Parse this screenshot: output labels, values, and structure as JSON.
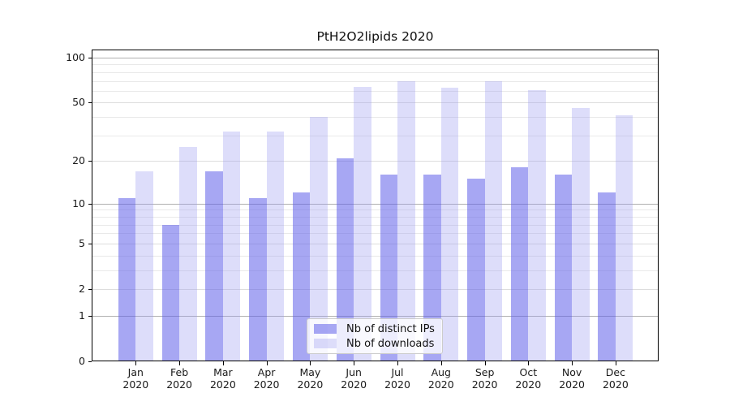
{
  "title": "PtH2O2lipids 2020",
  "legend": {
    "items": [
      {
        "label": "Nb of distinct IPs",
        "color": "rgba(94,94,234,0.55)"
      },
      {
        "label": "Nb of downloads",
        "color": "rgba(157,157,240,0.35)"
      }
    ]
  },
  "chart_data": {
    "type": "bar",
    "title": "PtH2O2lipids 2020",
    "categories": [
      "Jan",
      "Feb",
      "Mar",
      "Apr",
      "May",
      "Jun",
      "Jul",
      "Aug",
      "Sep",
      "Oct",
      "Nov",
      "Dec"
    ],
    "category_year": "2020",
    "series": [
      {
        "name": "Nb of distinct IPs",
        "fill": "rgba(94,94,234,0.55)",
        "values": [
          11,
          7,
          17,
          11,
          12,
          21,
          16,
          16,
          15,
          18,
          16,
          12
        ]
      },
      {
        "name": "Nb of downloads",
        "fill": "rgba(157,157,240,0.35)",
        "values": [
          17,
          25,
          32,
          32,
          40,
          64,
          70,
          63,
          70,
          61,
          46,
          41
        ]
      }
    ],
    "yscale": "log1p",
    "yticks": [
      0,
      1,
      2,
      5,
      10,
      20,
      50,
      100
    ],
    "minor_yticks": [
      3,
      4,
      6,
      7,
      8,
      9,
      30,
      40,
      60,
      70,
      80,
      90
    ],
    "ylim": [
      0,
      113
    ],
    "grid": true,
    "legend_position": "lower center",
    "colors": {
      "grid_major": "#b0b0b0",
      "grid_labeled": "#dddddd",
      "grid_minor": "#e9e9e9",
      "axis": "#000000",
      "text": "#1a1a1a",
      "legend_bg": "rgba(255,255,255,0.8)",
      "legend_border": "#cccccc"
    }
  }
}
